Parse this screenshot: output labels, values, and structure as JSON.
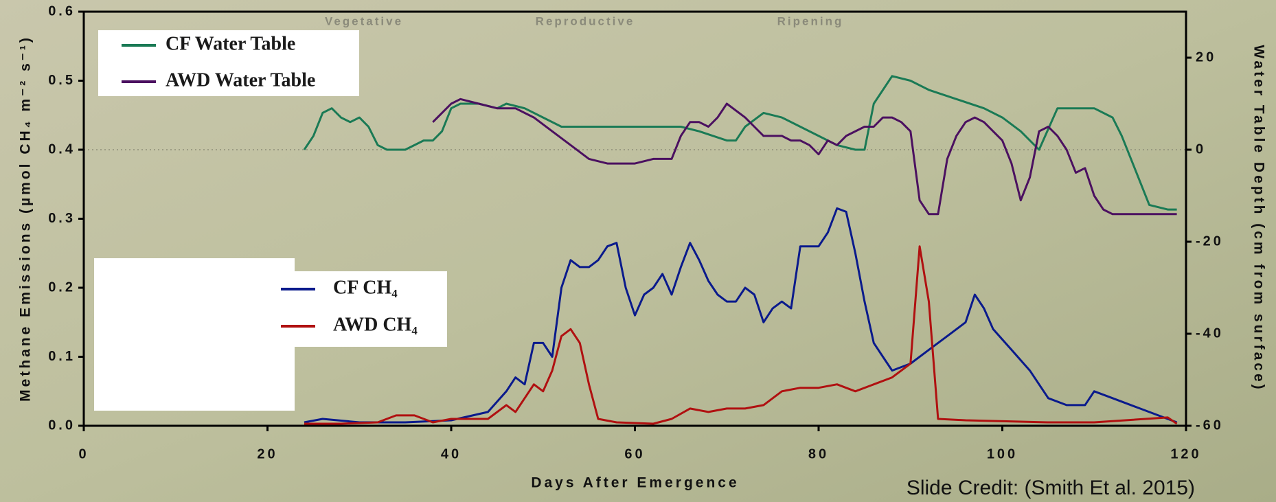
{
  "chart_data": {
    "type": "line",
    "phases": [
      "Vegetative",
      "Reproductive",
      "Ripening"
    ],
    "x_label": "Days After Emergence",
    "y_label": "Methane Emissions (µmol CH₄ m⁻² s⁻¹)",
    "y2_label": "Water Table Depth (cm from surface)",
    "credit": "Slide Credit: (Smith Et al. 2015)",
    "xlim": [
      0,
      120
    ],
    "xticks": [
      0,
      20,
      40,
      60,
      80,
      100,
      120
    ],
    "ylim": [
      0,
      0.6
    ],
    "yticks": [
      {
        "value": 0,
        "label": "0.0"
      },
      0.1,
      0.2,
      0.3,
      0.4,
      0.5,
      0.6
    ],
    "y2lim": [
      -60,
      30
    ],
    "y2ticks": [
      -60,
      -40,
      -20,
      0,
      20
    ],
    "series": [
      {
        "name": "CF Water Table",
        "color": "#1a7a55",
        "axis": "y2",
        "x": [
          24,
          25,
          26,
          27,
          28,
          29,
          30,
          31,
          32,
          33,
          35,
          37,
          38,
          39,
          40,
          41,
          43,
          45,
          46,
          48,
          50,
          52,
          60,
          65,
          67,
          70,
          71,
          72,
          74,
          76,
          78,
          80,
          82,
          84,
          85,
          86,
          88,
          90,
          92,
          95,
          98,
          100,
          102,
          104,
          106,
          108,
          110,
          112,
          113,
          114,
          116,
          118,
          119
        ],
        "values": [
          0,
          3,
          8,
          9,
          7,
          6,
          7,
          5,
          1,
          0,
          0,
          2,
          2,
          4,
          9,
          10,
          10,
          9,
          10,
          9,
          7,
          5,
          5,
          5,
          4,
          2,
          2,
          5,
          8,
          7,
          5,
          3,
          1,
          0,
          0,
          10,
          16,
          15,
          13,
          11,
          9,
          7,
          4,
          0,
          9,
          9,
          9,
          7,
          3,
          -2,
          -12,
          -13,
          -13
        ]
      },
      {
        "name": "AWD Water Table",
        "color": "#4b1060",
        "axis": "y2",
        "x": [
          38,
          39,
          40,
          41,
          43,
          45,
          47,
          49,
          51,
          53,
          55,
          57,
          60,
          62,
          64,
          65,
          66,
          67,
          68,
          69,
          70,
          72,
          73,
          74,
          76,
          77,
          78,
          79,
          80,
          81,
          82,
          83,
          85,
          86,
          87,
          88,
          89,
          90,
          91,
          92,
          93,
          94,
          95,
          96,
          97,
          98,
          99,
          100,
          101,
          102,
          103,
          104,
          105,
          106,
          107,
          108,
          109,
          110,
          111,
          112,
          119
        ],
        "values": [
          6,
          8,
          10,
          11,
          10,
          9,
          9,
          7,
          4,
          1,
          -2,
          -3,
          -3,
          -2,
          -2,
          3,
          6,
          6,
          5,
          7,
          10,
          7,
          5,
          3,
          3,
          2,
          2,
          1,
          -1,
          2,
          1,
          3,
          5,
          5,
          7,
          7,
          6,
          4,
          -11,
          -14,
          -14,
          -2,
          3,
          6,
          7,
          6,
          4,
          2,
          -3,
          -11,
          -6,
          4,
          5,
          3,
          0,
          -5,
          -4,
          -10,
          -13,
          -14,
          -14
        ]
      },
      {
        "name": "CF CH₄",
        "color": "#0a1a8c",
        "x": [
          24,
          26,
          30,
          35,
          40,
          44,
          46,
          47,
          48,
          49,
          50,
          51,
          52,
          53,
          54,
          55,
          56,
          57,
          58,
          59,
          60,
          61,
          62,
          63,
          64,
          65,
          66,
          67,
          68,
          69,
          70,
          71,
          72,
          73,
          74,
          75,
          76,
          77,
          78,
          79,
          80,
          81,
          82,
          83,
          84,
          85,
          86,
          87,
          88,
          90,
          92,
          94,
          96,
          97,
          98,
          99,
          101,
          103,
          105,
          107,
          109,
          110,
          112,
          115,
          119
        ],
        "values": [
          0.005,
          0.01,
          0.005,
          0.005,
          0.008,
          0.02,
          0.05,
          0.07,
          0.06,
          0.12,
          0.12,
          0.1,
          0.2,
          0.24,
          0.23,
          0.23,
          0.24,
          0.26,
          0.265,
          0.2,
          0.16,
          0.19,
          0.2,
          0.22,
          0.19,
          0.23,
          0.265,
          0.24,
          0.21,
          0.19,
          0.18,
          0.18,
          0.2,
          0.19,
          0.15,
          0.17,
          0.18,
          0.17,
          0.26,
          0.26,
          0.26,
          0.28,
          0.315,
          0.31,
          0.25,
          0.18,
          0.12,
          0.1,
          0.08,
          0.09,
          0.11,
          0.13,
          0.15,
          0.19,
          0.17,
          0.14,
          0.11,
          0.08,
          0.04,
          0.03,
          0.03,
          0.05,
          0.04,
          0.025,
          0.005
        ]
      },
      {
        "name": "AWD CH₄",
        "color": "#b01010",
        "x": [
          24,
          28,
          32,
          34,
          36,
          38,
          40,
          44,
          46,
          47,
          48,
          49,
          50,
          51,
          52,
          53,
          54,
          55,
          56,
          58,
          62,
          64,
          66,
          68,
          70,
          72,
          74,
          76,
          78,
          80,
          82,
          84,
          86,
          88,
          90,
          91,
          92,
          93,
          96,
          105,
          110,
          118,
          119
        ],
        "values": [
          0.003,
          0.003,
          0.005,
          0.015,
          0.015,
          0.005,
          0.01,
          0.01,
          0.03,
          0.02,
          0.04,
          0.06,
          0.05,
          0.08,
          0.13,
          0.14,
          0.12,
          0.06,
          0.01,
          0.005,
          0.003,
          0.01,
          0.025,
          0.02,
          0.025,
          0.025,
          0.03,
          0.05,
          0.055,
          0.055,
          0.06,
          0.05,
          0.06,
          0.07,
          0.09,
          0.26,
          0.18,
          0.01,
          0.008,
          0.005,
          0.005,
          0.012,
          0.003
        ]
      }
    ]
  }
}
